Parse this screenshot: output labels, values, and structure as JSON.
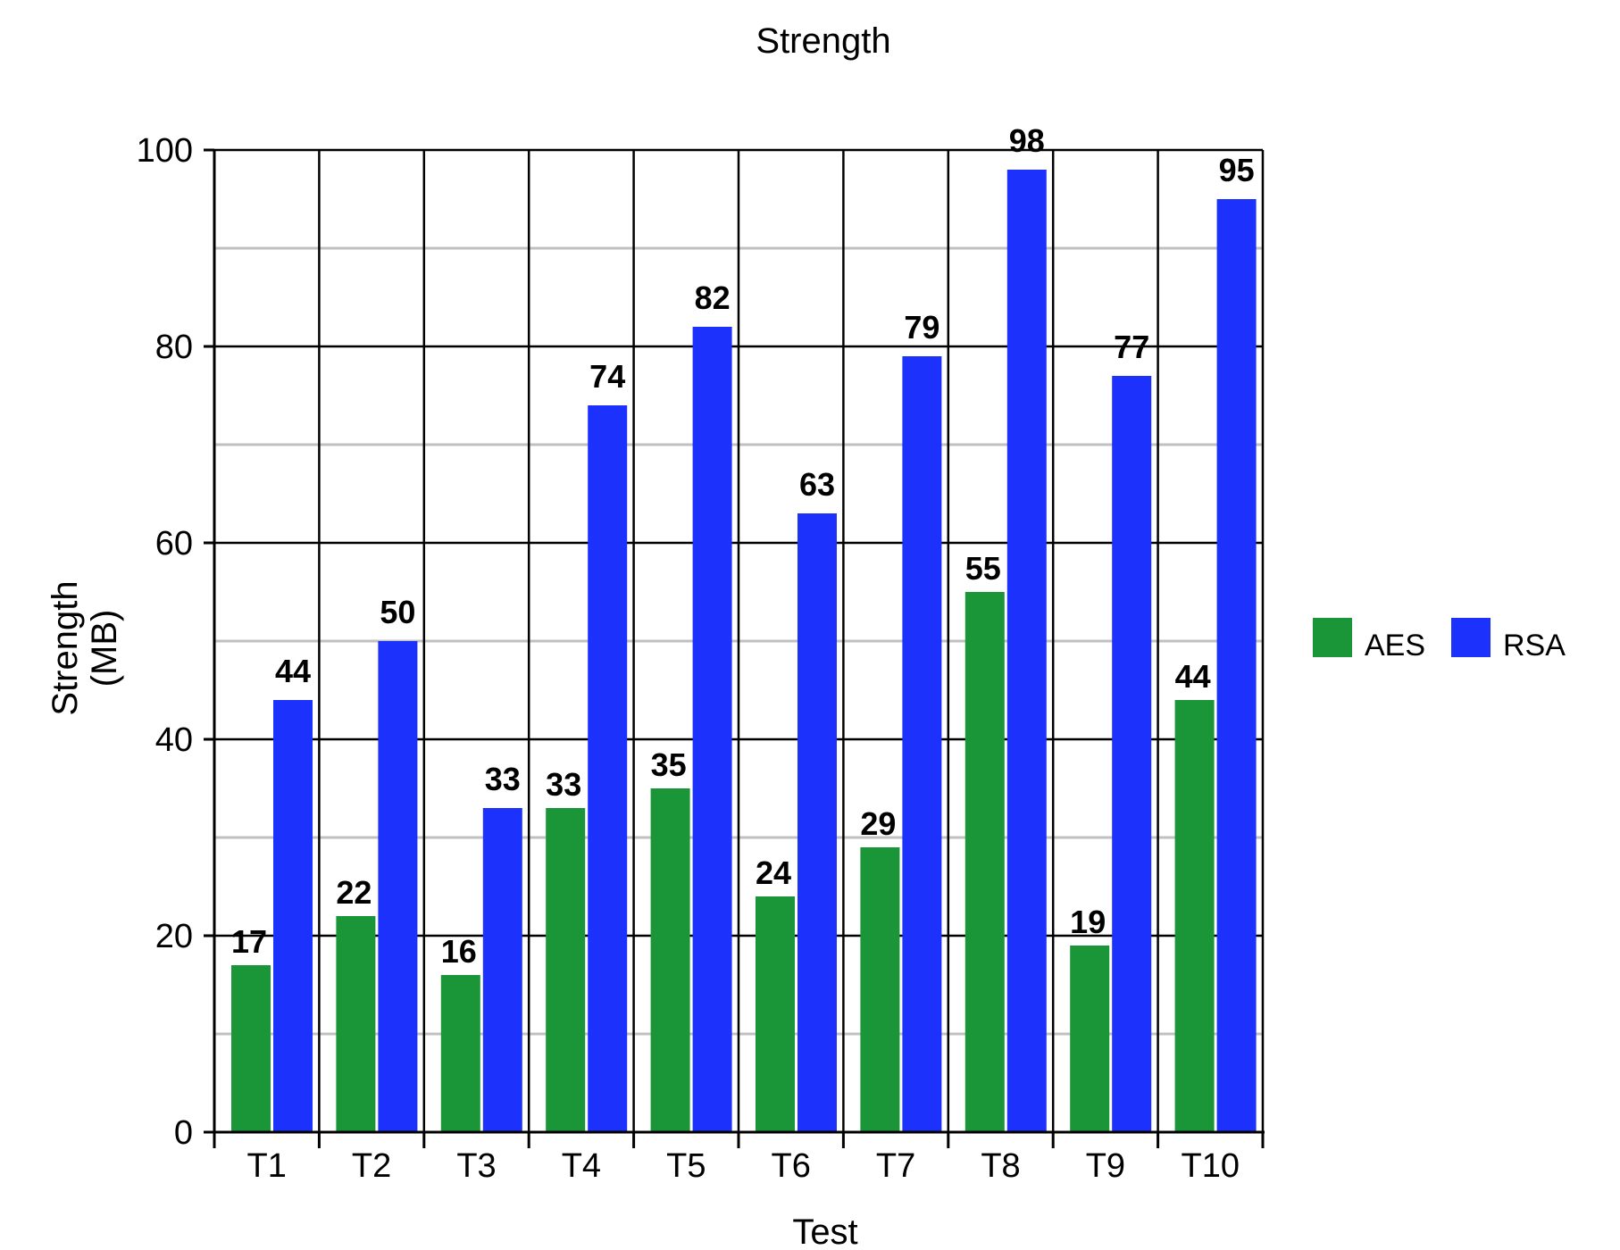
{
  "chart_data": {
    "type": "bar",
    "title": "Strength",
    "xlabel": "Test",
    "ylabel": [
      "Strength",
      "(MB)"
    ],
    "categories": [
      "T1",
      "T2",
      "T3",
      "T4",
      "T5",
      "T6",
      "T7",
      "T8",
      "T9",
      "T10"
    ],
    "series": [
      {
        "name": "AES",
        "color": "#1a9639",
        "values": [
          17,
          22,
          16,
          33,
          35,
          24,
          29,
          55,
          19,
          44
        ]
      },
      {
        "name": "RSA",
        "color": "#1c31fb",
        "values": [
          44,
          50,
          33,
          74,
          82,
          63,
          79,
          98,
          77,
          95
        ]
      }
    ],
    "ylim": [
      0,
      100
    ],
    "yticks": [
      0,
      20,
      40,
      60,
      80,
      100
    ],
    "grid": true,
    "legend": "right"
  }
}
